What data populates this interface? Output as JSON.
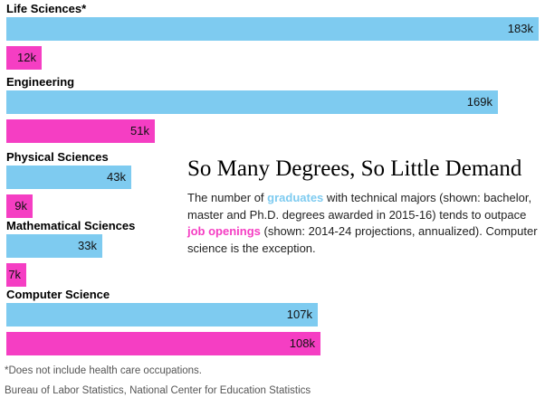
{
  "colors": {
    "graduates": "#7ecbf0",
    "job_openings": "#f53ec3"
  },
  "headline": "So Many Degrees, So Little Demand",
  "description": {
    "part1": "The number of ",
    "graduates_keyword": "graduates",
    "part2": " with technical majors (shown: bachelor, master and Ph.D. degrees awarded in 2015-16) tends to outpace ",
    "job_openings_keyword": "job openings",
    "part3": " (shown: 2014-24 projections, annualized). Computer science is the exception."
  },
  "footnote": "*Does not include health care occupations.",
  "source": "Bureau of Labor Statistics, National Center for Education Statistics",
  "chart_data": {
    "type": "bar",
    "orientation": "horizontal",
    "categories": [
      "Life Sciences*",
      "Engineering",
      "Physical Sciences",
      "Mathematical Sciences",
      "Computer Science"
    ],
    "series": [
      {
        "key": "graduates",
        "values": [
          183,
          169,
          43,
          33,
          107
        ],
        "labels": [
          "183k",
          "169k",
          "43k",
          "33k",
          "107k"
        ]
      },
      {
        "key": "job_openings",
        "values": [
          12,
          51,
          9,
          7,
          108
        ],
        "labels": [
          "12k",
          "51k",
          "9k",
          "7k",
          "108k"
        ]
      }
    ],
    "xlim": [
      0,
      183
    ]
  }
}
